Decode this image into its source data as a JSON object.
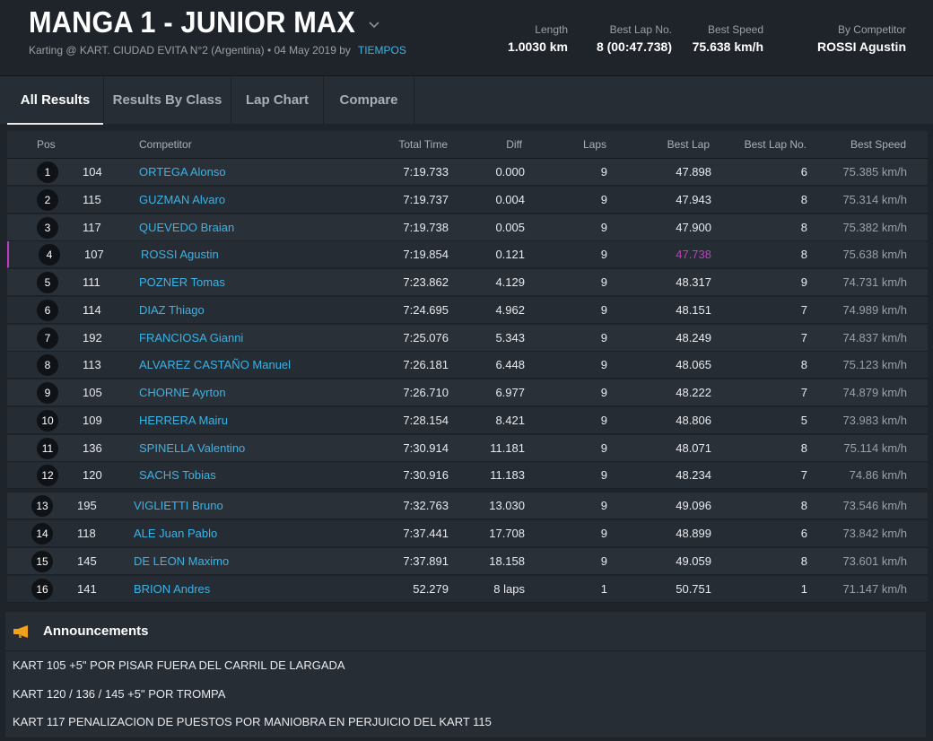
{
  "event": {
    "title": "MANGA 1 - JUNIOR MAX",
    "subtitle": "Karting @ KART. CIUDAD EVITA N°2 (Argentina) • 04 May 2019 by",
    "organizer_link": "TIEMPOS"
  },
  "stats": {
    "length": {
      "label": "Length",
      "value": "1.0030 km"
    },
    "best_lap_no": {
      "label": "Best Lap No.",
      "value": "8 (00:47.738)"
    },
    "best_speed": {
      "label": "Best Speed",
      "value": "75.638 km/h"
    },
    "by_competitor": {
      "label": "By Competitor",
      "value": "ROSSI Agustin"
    }
  },
  "tabs": [
    {
      "label": "All Results",
      "active": true
    },
    {
      "label": "Results By Class",
      "active": false
    },
    {
      "label": "Lap Chart",
      "active": false
    },
    {
      "label": "Compare",
      "active": false
    }
  ],
  "columns": {
    "pos": "Pos",
    "competitor": "Competitor",
    "total_time": "Total Time",
    "diff": "Diff",
    "laps": "Laps",
    "best_lap": "Best Lap",
    "best_lap_no": "Best Lap No.",
    "best_speed": "Best Speed"
  },
  "rows": [
    {
      "pos": "1",
      "kart": "104",
      "name": "ORTEGA Alonso",
      "total": "7:19.733",
      "diff": "0.000",
      "laps": "9",
      "best_lap": "47.898",
      "best_lap_no": "6",
      "speed": "75.385 km/h"
    },
    {
      "pos": "2",
      "kart": "115",
      "name": "GUZMAN Alvaro",
      "total": "7:19.737",
      "diff": "0.004",
      "laps": "9",
      "best_lap": "47.943",
      "best_lap_no": "8",
      "speed": "75.314 km/h"
    },
    {
      "pos": "3",
      "kart": "117",
      "name": "QUEVEDO Braian",
      "total": "7:19.738",
      "diff": "0.005",
      "laps": "9",
      "best_lap": "47.900",
      "best_lap_no": "8",
      "speed": "75.382 km/h"
    },
    {
      "pos": "4",
      "kart": "107",
      "name": "ROSSI Agustin",
      "total": "7:19.854",
      "diff": "0.121",
      "laps": "9",
      "best_lap": "47.738",
      "best_lap_no": "8",
      "speed": "75.638 km/h",
      "best": true
    },
    {
      "pos": "5",
      "kart": "111",
      "name": "POZNER Tomas",
      "total": "7:23.862",
      "diff": "4.129",
      "laps": "9",
      "best_lap": "48.317",
      "best_lap_no": "9",
      "speed": "74.731 km/h"
    },
    {
      "pos": "6",
      "kart": "114",
      "name": "DIAZ Thiago",
      "total": "7:24.695",
      "diff": "4.962",
      "laps": "9",
      "best_lap": "48.151",
      "best_lap_no": "7",
      "speed": "74.989 km/h"
    },
    {
      "pos": "7",
      "kart": "192",
      "name": "FRANCIOSA Gianni",
      "total": "7:25.076",
      "diff": "5.343",
      "laps": "9",
      "best_lap": "48.249",
      "best_lap_no": "7",
      "speed": "74.837 km/h"
    },
    {
      "pos": "8",
      "kart": "113",
      "name": "ALVAREZ CASTAÑO Manuel",
      "total": "7:26.181",
      "diff": "6.448",
      "laps": "9",
      "best_lap": "48.065",
      "best_lap_no": "8",
      "speed": "75.123 km/h"
    },
    {
      "pos": "9",
      "kart": "105",
      "name": "CHORNE Ayrton",
      "total": "7:26.710",
      "diff": "6.977",
      "laps": "9",
      "best_lap": "48.222",
      "best_lap_no": "7",
      "speed": "74.879 km/h"
    },
    {
      "pos": "10",
      "kart": "109",
      "name": "HERRERA Mairu",
      "total": "7:28.154",
      "diff": "8.421",
      "laps": "9",
      "best_lap": "48.806",
      "best_lap_no": "5",
      "speed": "73.983 km/h"
    },
    {
      "pos": "11",
      "kart": "136",
      "name": "SPINELLA Valentino",
      "total": "7:30.914",
      "diff": "11.181",
      "laps": "9",
      "best_lap": "48.071",
      "best_lap_no": "8",
      "speed": "75.114 km/h"
    },
    {
      "pos": "12",
      "kart": "120",
      "name": "SACHS Tobias",
      "total": "7:30.916",
      "diff": "11.183",
      "laps": "9",
      "best_lap": "48.234",
      "best_lap_no": "7",
      "speed": "74.86 km/h"
    },
    {
      "pos": "13",
      "kart": "195",
      "name": "VIGLIETTI Bruno",
      "total": "7:32.763",
      "diff": "13.030",
      "laps": "9",
      "best_lap": "49.096",
      "best_lap_no": "8",
      "speed": "73.546 km/h"
    },
    {
      "pos": "14",
      "kart": "118",
      "name": "ALE Juan Pablo",
      "total": "7:37.441",
      "diff": "17.708",
      "laps": "9",
      "best_lap": "48.899",
      "best_lap_no": "6",
      "speed": "73.842 km/h"
    },
    {
      "pos": "15",
      "kart": "145",
      "name": "DE LEON Maximo",
      "total": "7:37.891",
      "diff": "18.158",
      "laps": "9",
      "best_lap": "49.059",
      "best_lap_no": "8",
      "speed": "73.601 km/h"
    },
    {
      "pos": "16",
      "kart": "141",
      "name": "BRION Andres",
      "total": "52.279",
      "diff": "8 laps",
      "laps": "1",
      "best_lap": "50.751",
      "best_lap_no": "1",
      "speed": "71.147 km/h"
    }
  ],
  "announcements": {
    "title": "Announcements",
    "icon": "megaphone-icon",
    "items": [
      "KART 105 +5\" POR PISAR FUERA DEL CARRIL DE LARGADA",
      "KART 120 / 136 / 145 +5\" POR TROMPA",
      "KART 117 PENALIZACION DE PUESTOS POR MANIOBRA EN PERJUICIO DEL KART 115"
    ]
  },
  "colors": {
    "link": "#3bb3e5",
    "best_lap": "#c03cc4",
    "background": "#1f242b",
    "announcement_icon": "#f0a21c"
  }
}
